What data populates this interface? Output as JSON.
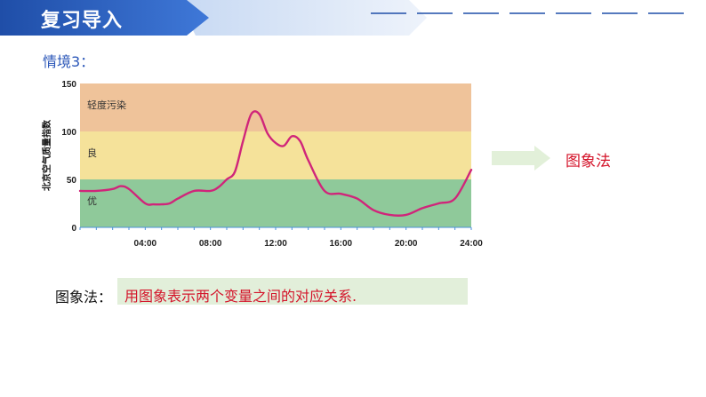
{
  "header": {
    "title": "复习导入"
  },
  "scenario": {
    "label": "情境3："
  },
  "chart_data": {
    "type": "line",
    "title": "",
    "xlabel": "",
    "ylabel": "北京空气质量指数",
    "xlim": [
      0,
      24
    ],
    "ylim": [
      0,
      150
    ],
    "x_ticks": [
      "04:00",
      "08:00",
      "12:00",
      "16:00",
      "20:00",
      "24:00"
    ],
    "y_ticks": [
      "0",
      "50",
      "100",
      "150"
    ],
    "bands": [
      {
        "label": "优",
        "from": 0,
        "to": 50,
        "color": "#8fc99a"
      },
      {
        "label": "良",
        "from": 50,
        "to": 100,
        "color": "#f5e29a"
      },
      {
        "label": "轻度污染",
        "from": 100,
        "to": 150,
        "color": "#efc39a"
      }
    ],
    "line_color": "#d0257a",
    "series": [
      {
        "x": [
          0,
          1,
          2,
          2.5,
          3,
          4,
          4.5,
          5,
          5.5,
          6,
          7,
          8,
          8.5,
          9,
          9.5,
          10,
          10.5,
          11,
          11.5,
          12,
          12.5,
          13,
          13.5,
          14,
          15,
          16,
          17,
          18,
          19,
          20,
          21,
          22,
          23,
          24
        ],
        "y": [
          38,
          38,
          40,
          43,
          40,
          25,
          24,
          24,
          25,
          30,
          38,
          38,
          42,
          50,
          58,
          90,
          118,
          118,
          98,
          88,
          85,
          95,
          90,
          70,
          38,
          35,
          30,
          18,
          13,
          13,
          20,
          25,
          30,
          60
        ]
      }
    ]
  },
  "arrow_color": "#e2f0d9",
  "method": {
    "label": "图象法"
  },
  "definition": {
    "label": "图象法：",
    "text": "用图象表示两个变量之间的对应关系."
  }
}
